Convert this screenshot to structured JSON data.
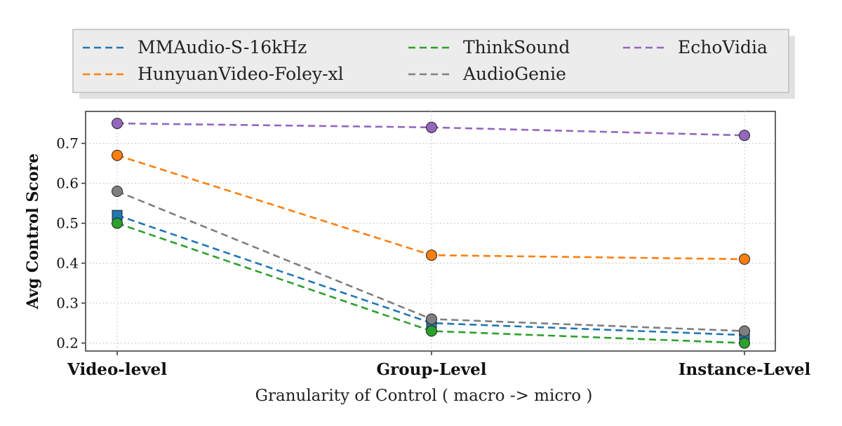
{
  "chart_data": {
    "type": "line",
    "title": "",
    "xlabel": "Granularity of Control ( macro -> micro )",
    "ylabel": "Avg Control Score",
    "categories": [
      "Video-level",
      "Group-Level",
      "Instance-Level"
    ],
    "ylim": [
      0.18,
      0.78
    ],
    "yticks": [
      "0.2",
      "0.3",
      "0.4",
      "0.5",
      "0.6",
      "0.7"
    ],
    "grid": true,
    "line_style": "dashed",
    "legend_position": "top (above plot, 3 columns)",
    "series": [
      {
        "name": "MMAudio-S-16kHz",
        "color": "#1f77b4",
        "marker": "square",
        "values": [
          0.52,
          0.25,
          0.22
        ]
      },
      {
        "name": "HunyuanVideo-Foley-xl",
        "color": "#ff7f0e",
        "marker": "circle",
        "values": [
          0.67,
          0.42,
          0.41
        ]
      },
      {
        "name": "ThinkSound",
        "color": "#2ca02c",
        "marker": "circle",
        "values": [
          0.5,
          0.23,
          0.2
        ]
      },
      {
        "name": "AudioGenie",
        "color": "#7f7f7f",
        "marker": "circle",
        "values": [
          0.58,
          0.26,
          0.23
        ]
      },
      {
        "name": "EchoVidia",
        "color": "#9467bd",
        "marker": "circle",
        "values": [
          0.75,
          0.74,
          0.72
        ]
      }
    ]
  }
}
